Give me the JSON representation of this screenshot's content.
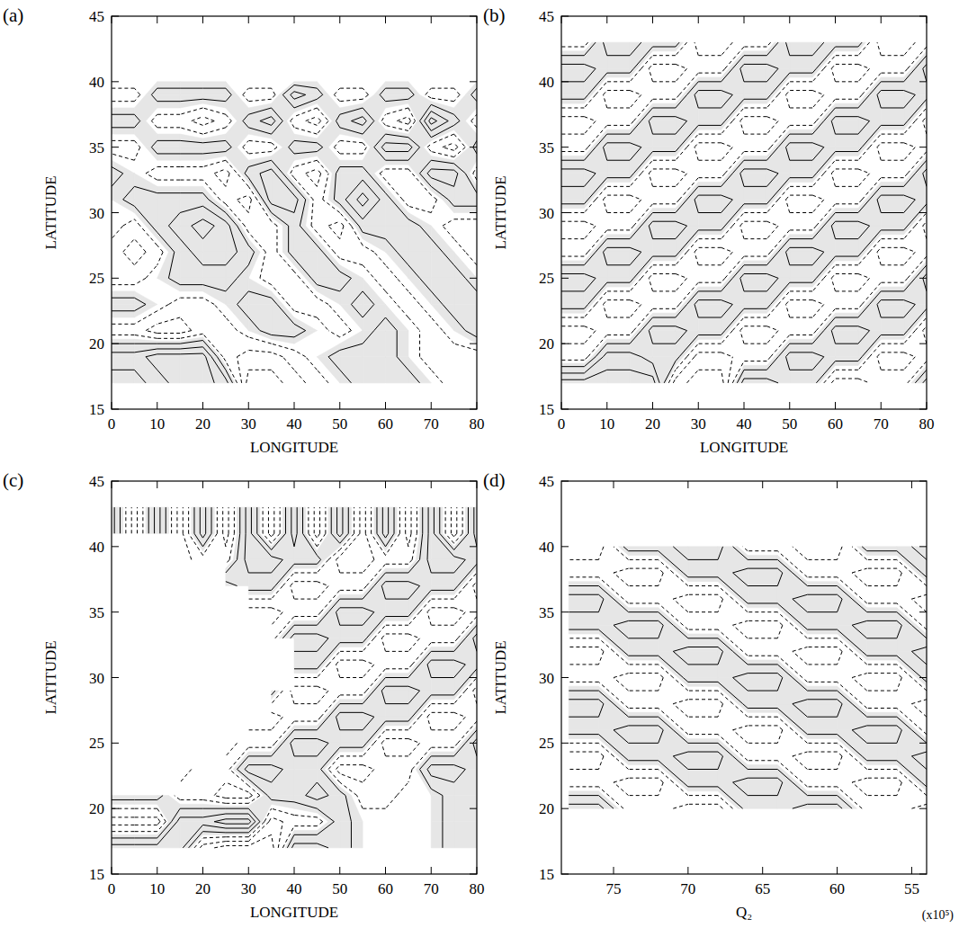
{
  "chart_data": [
    {
      "type": "contour",
      "title": "(a)",
      "x_label": "LONGITUDE",
      "y_label": "LATITUDE",
      "xlim": [
        0,
        80
      ],
      "ylim": [
        15,
        45
      ],
      "xticks": [
        0,
        10,
        20,
        30,
        40,
        50,
        60,
        70,
        80
      ],
      "yticks": [
        15,
        20,
        25,
        30,
        35,
        40,
        45
      ],
      "levels": [
        -2.5,
        -1.5,
        -0.5,
        0.5,
        1.5,
        2.5
      ],
      "x": [
        0,
        5,
        10,
        15,
        20,
        25,
        30,
        35,
        40,
        45,
        50,
        55,
        60,
        65,
        70,
        75,
        80
      ],
      "y": [
        17,
        19,
        21,
        23,
        25,
        27,
        29,
        31,
        33,
        35,
        37,
        39,
        40
      ],
      "values": [
        [
          1,
          1,
          2,
          3,
          3,
          2,
          -3,
          -3,
          -2,
          -1,
          0,
          1,
          1,
          1,
          0,
          -1,
          -1
        ],
        [
          2,
          2,
          3,
          3,
          3,
          -1,
          -2,
          -2,
          -1,
          0,
          1,
          1,
          1,
          0,
          -1,
          -1,
          -1
        ],
        [
          -1,
          -1,
          -2,
          -2,
          -1,
          -1,
          0,
          1,
          1,
          0,
          -1,
          0,
          1,
          0,
          -1,
          0,
          1
        ],
        [
          1,
          1,
          0,
          -1,
          -1,
          0,
          1,
          1,
          -1,
          -1,
          0,
          1,
          0,
          -1,
          0,
          1,
          1
        ],
        [
          -1,
          -1,
          0,
          1,
          1,
          1,
          0,
          -1,
          -1,
          1,
          1,
          0,
          -1,
          0,
          1,
          1,
          0
        ],
        [
          -1,
          -2,
          -1,
          1,
          2,
          2,
          1,
          -1,
          1,
          1,
          -1,
          -1,
          0,
          1,
          1,
          0,
          -1
        ],
        [
          0,
          -1,
          1,
          2,
          3,
          2,
          -1,
          -1,
          1,
          -1,
          -2,
          1,
          1,
          1,
          0,
          -1,
          -1
        ],
        [
          0,
          1,
          1,
          1,
          1,
          -1,
          -2,
          2,
          2,
          -1,
          1,
          3,
          1,
          -1,
          -1,
          1,
          1
        ],
        [
          1,
          0,
          -1,
          -1,
          -1,
          -2,
          1,
          2,
          -1,
          -2,
          1,
          1,
          -1,
          -1,
          2,
          2,
          -1
        ],
        [
          -1,
          -1,
          1,
          1,
          1,
          1,
          -1,
          -1,
          1,
          1,
          -1,
          -1,
          2,
          2,
          -1,
          -2,
          1
        ],
        [
          1,
          1,
          -1,
          -1,
          -2,
          -1,
          1,
          2,
          -1,
          -2,
          1,
          2,
          -1,
          -2,
          3,
          1,
          -1
        ],
        [
          -1,
          -1,
          1,
          1,
          1,
          1,
          -1,
          -1,
          2,
          1,
          -1,
          -1,
          1,
          1,
          -1,
          -1,
          1
        ],
        [
          0,
          0,
          0,
          0,
          0,
          0,
          0,
          0,
          0,
          0,
          0,
          0,
          0,
          0,
          0,
          0,
          0
        ]
      ]
    },
    {
      "type": "contour",
      "title": "(b)",
      "x_label": "LONGITUDE",
      "y_label": "LATITUDE",
      "xlim": [
        0,
        80
      ],
      "ylim": [
        15,
        45
      ],
      "xticks": [
        0,
        10,
        20,
        30,
        40,
        50,
        60,
        70,
        80
      ],
      "yticks": [
        15,
        20,
        25,
        30,
        35,
        40,
        45
      ],
      "levels": [
        -2.5,
        -1.5,
        -0.5,
        0.5,
        1.5,
        2.5
      ],
      "x": [
        0,
        5,
        10,
        15,
        20,
        25,
        30,
        35,
        40,
        45,
        50,
        55,
        60,
        65,
        70,
        75,
        80
      ],
      "y": [
        17,
        19,
        21,
        23,
        25,
        27,
        29,
        31,
        33,
        35,
        37,
        39,
        41,
        43
      ],
      "values": [
        [
          3,
          3,
          3,
          3,
          3,
          -2,
          -3,
          -3,
          2,
          2,
          1,
          1,
          -2,
          -2,
          -1,
          -1,
          2
        ],
        [
          -1,
          -1,
          2,
          2,
          1,
          1,
          -2,
          -2,
          -1,
          -1,
          2,
          2,
          1,
          1,
          -2,
          -2,
          -1
        ],
        [
          -2,
          -2,
          -1,
          -1,
          2,
          2,
          1,
          1,
          -2,
          -2,
          -1,
          -1,
          2,
          2,
          1,
          1,
          -2
        ],
        [
          1,
          1,
          -2,
          -2,
          -1,
          -1,
          2,
          2,
          1,
          1,
          -2,
          -2,
          -1,
          -1,
          2,
          2,
          1
        ],
        [
          2,
          2,
          1,
          1,
          -2,
          -2,
          -1,
          -1,
          2,
          2,
          1,
          1,
          -2,
          -2,
          -1,
          -1,
          2
        ],
        [
          -1,
          -1,
          2,
          2,
          1,
          1,
          -2,
          -2,
          -1,
          -1,
          2,
          2,
          1,
          1,
          -2,
          -2,
          -1
        ],
        [
          -2,
          -2,
          -1,
          -1,
          2,
          2,
          1,
          1,
          -2,
          -2,
          -1,
          -1,
          2,
          2,
          1,
          1,
          -2
        ],
        [
          1,
          1,
          -2,
          -2,
          -1,
          -1,
          2,
          2,
          1,
          1,
          -2,
          -2,
          -1,
          -1,
          2,
          2,
          1
        ],
        [
          2,
          2,
          1,
          1,
          -2,
          -2,
          -1,
          -1,
          2,
          2,
          1,
          1,
          -2,
          -2,
          -1,
          -1,
          2
        ],
        [
          -1,
          -1,
          2,
          2,
          1,
          1,
          -2,
          -2,
          -1,
          -1,
          2,
          2,
          1,
          1,
          -2,
          -2,
          -1
        ],
        [
          -2,
          -2,
          -1,
          -1,
          2,
          2,
          1,
          1,
          -2,
          -2,
          -1,
          -1,
          2,
          2,
          1,
          1,
          -2
        ],
        [
          1,
          1,
          -2,
          -2,
          -1,
          -1,
          2,
          2,
          1,
          1,
          -2,
          -2,
          -1,
          -1,
          2,
          2,
          1
        ],
        [
          2,
          2,
          1,
          1,
          -2,
          -2,
          -1,
          -1,
          2,
          2,
          1,
          1,
          -2,
          -2,
          -1,
          -1,
          2
        ],
        [
          -1,
          -1,
          2,
          2,
          1,
          1,
          -2,
          -2,
          -1,
          -1,
          2,
          2,
          1,
          1,
          -2,
          -2,
          -1
        ]
      ]
    },
    {
      "type": "contour",
      "title": "(c)",
      "x_label": "LONGITUDE",
      "y_label": "LATITUDE",
      "xlim": [
        0,
        80
      ],
      "ylim": [
        15,
        45
      ],
      "xticks": [
        0,
        10,
        20,
        30,
        40,
        50,
        60,
        70,
        80
      ],
      "yticks": [
        15,
        20,
        25,
        30,
        35,
        40,
        45
      ],
      "levels": [
        -2.5,
        -1.5,
        -0.5,
        0.5,
        1.5,
        2.5
      ],
      "x": [
        0,
        5,
        10,
        15,
        20,
        25,
        30,
        35,
        40,
        45,
        50,
        55,
        60,
        65,
        70,
        75,
        80
      ],
      "y": [
        17,
        19,
        21,
        23,
        25,
        27,
        29,
        31,
        33,
        35,
        37,
        39,
        41,
        43
      ],
      "values": [
        [
          2,
          2,
          2,
          2,
          -2,
          -3,
          -3,
          -3,
          2,
          2,
          1,
          0,
          0,
          0,
          0,
          1,
          1
        ],
        [
          -2,
          -2,
          -2,
          2,
          2,
          3,
          3,
          -2,
          -1,
          -1,
          1,
          0,
          0,
          0,
          0,
          1,
          1
        ],
        [
          1,
          1,
          1,
          -1,
          -1,
          -2,
          -2,
          1,
          1,
          2,
          1,
          -1,
          -1,
          0,
          0,
          1,
          1
        ],
        [
          null,
          null,
          null,
          -2,
          -1,
          -1,
          2,
          2,
          1,
          1,
          -2,
          -2,
          -1,
          -1,
          2,
          2,
          1
        ],
        [
          null,
          null,
          null,
          null,
          null,
          -2,
          -1,
          -1,
          2,
          2,
          1,
          1,
          -2,
          -2,
          -1,
          -1,
          2
        ],
        [
          null,
          null,
          null,
          null,
          null,
          null,
          -2,
          -2,
          -1,
          -1,
          2,
          2,
          1,
          1,
          -2,
          -2,
          -1
        ],
        [
          null,
          null,
          null,
          null,
          null,
          null,
          null,
          1,
          -2,
          -2,
          -1,
          -1,
          2,
          2,
          1,
          1,
          -2
        ],
        [
          null,
          null,
          null,
          null,
          null,
          null,
          null,
          null,
          1,
          1,
          -2,
          -2,
          -1,
          -1,
          2,
          2,
          1
        ],
        [
          null,
          null,
          null,
          null,
          null,
          null,
          null,
          -1,
          2,
          2,
          1,
          1,
          -2,
          -2,
          -1,
          -1,
          2
        ],
        [
          null,
          null,
          null,
          null,
          null,
          null,
          -2,
          -2,
          -1,
          -1,
          2,
          2,
          1,
          1,
          -2,
          -2,
          -1
        ],
        [
          null,
          null,
          null,
          null,
          null,
          2,
          1,
          1,
          -2,
          -2,
          -1,
          -1,
          2,
          2,
          1,
          1,
          -2
        ],
        [
          null,
          null,
          null,
          -2,
          -1,
          -1,
          2,
          2,
          1,
          1,
          -2,
          -2,
          -1,
          -1,
          2,
          2,
          1
        ],
        [
          2,
          -2,
          2,
          -2,
          2,
          -2,
          2,
          -2,
          2,
          -2,
          2,
          -2,
          2,
          -2,
          2,
          -2,
          2
        ],
        [
          2,
          -2,
          2,
          -2,
          2,
          -2,
          2,
          -2,
          2,
          -2,
          2,
          -2,
          2,
          -2,
          2,
          -2,
          2
        ]
      ]
    },
    {
      "type": "contour",
      "title": "(d)",
      "x_label": "Q₂",
      "y_label": "LATITUDE",
      "annotations": [
        "(x10⁵)"
      ],
      "xlim": [
        78.5,
        54
      ],
      "ylim": [
        15,
        45
      ],
      "xticks": [
        75,
        70,
        65,
        60,
        55
      ],
      "yticks": [
        15,
        20,
        25,
        30,
        35,
        40,
        45
      ],
      "levels": [
        -2.5,
        -1.5,
        -0.5,
        0.5,
        1.5,
        2.5
      ],
      "x": [
        78,
        76,
        74,
        72,
        70,
        68,
        66,
        64,
        62,
        60,
        58,
        56,
        54
      ],
      "y": [
        20,
        22,
        24,
        26,
        28,
        30,
        32,
        34,
        36,
        38,
        40
      ],
      "values": [
        [
          2,
          2,
          -1,
          -1,
          -2,
          -2,
          1,
          1,
          2,
          2,
          -1,
          -1,
          -2
        ],
        [
          -1,
          -1,
          -2,
          -2,
          1,
          1,
          2,
          2,
          -1,
          -1,
          -2,
          -2,
          1
        ],
        [
          -2,
          -2,
          1,
          1,
          2,
          2,
          -1,
          -1,
          -2,
          -2,
          1,
          1,
          2
        ],
        [
          1,
          1,
          2,
          2,
          -1,
          -1,
          -2,
          -2,
          1,
          1,
          2,
          2,
          -1
        ],
        [
          2,
          2,
          -1,
          -1,
          -2,
          -2,
          1,
          1,
          2,
          2,
          -1,
          -1,
          -2
        ],
        [
          -1,
          -1,
          -2,
          -2,
          1,
          1,
          2,
          2,
          -1,
          -1,
          -2,
          -2,
          1
        ],
        [
          -2,
          -2,
          1,
          1,
          2,
          2,
          -1,
          -1,
          -2,
          -2,
          1,
          1,
          2
        ],
        [
          1,
          1,
          2,
          2,
          -1,
          -1,
          -2,
          -2,
          1,
          1,
          2,
          2,
          -1
        ],
        [
          2,
          2,
          -1,
          -1,
          -2,
          -2,
          1,
          1,
          2,
          2,
          -1,
          -1,
          -2
        ],
        [
          -1,
          -1,
          -2,
          -2,
          1,
          1,
          2,
          2,
          -1,
          -1,
          -2,
          -2,
          1
        ],
        [
          -2,
          -2,
          1,
          1,
          2,
          2,
          -1,
          -1,
          -2,
          -2,
          1,
          1,
          2
        ]
      ]
    }
  ]
}
